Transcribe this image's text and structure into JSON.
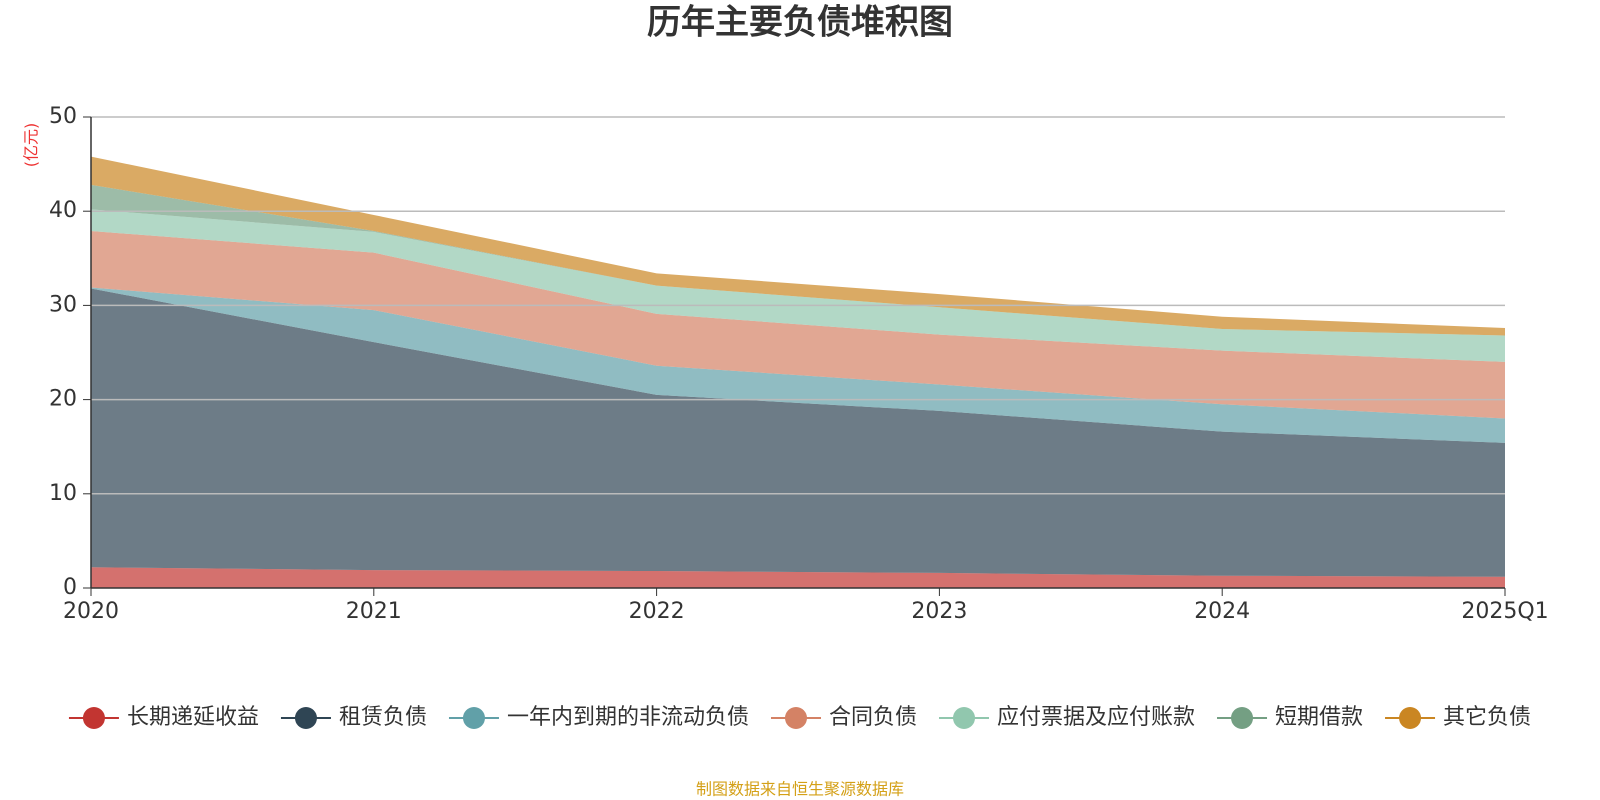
{
  "chart_data": {
    "type": "stacked-area",
    "title": "历年主要负债堆积图",
    "y_unit": "(亿元)",
    "categories": [
      "2020",
      "2021",
      "2022",
      "2023",
      "2024",
      "2025Q1"
    ],
    "series": [
      {
        "name": "长期递延收益",
        "color": "#c23531",
        "values": [
          2.2,
          1.9,
          1.8,
          1.6,
          1.3,
          1.2
        ]
      },
      {
        "name": "租赁负债",
        "color": "#2f4554",
        "values": [
          29.6,
          24.2,
          18.7,
          17.2,
          15.3,
          14.2
        ]
      },
      {
        "name": "一年内到期的非流动负债",
        "color": "#61a0a8",
        "values": [
          0.1,
          3.4,
          3.1,
          2.8,
          2.9,
          2.6
        ]
      },
      {
        "name": "合同负债",
        "color": "#d48265",
        "values": [
          6.0,
          6.1,
          5.5,
          5.3,
          5.7,
          6.0
        ]
      },
      {
        "name": "应付票据及应付账款",
        "color": "#91c7ae",
        "values": [
          2.3,
          2.2,
          3.0,
          2.9,
          2.3,
          2.8
        ]
      },
      {
        "name": "短期借款",
        "color": "#749f83",
        "values": [
          2.6,
          0.1,
          0,
          0,
          0,
          0
        ]
      },
      {
        "name": "其它负债",
        "color": "#ca8622",
        "values": [
          3.0,
          1.7,
          1.3,
          1.4,
          1.3,
          0.8
        ]
      }
    ],
    "ylim": [
      0,
      50
    ],
    "yticks": [
      0,
      10,
      20,
      30,
      40,
      50
    ],
    "grid": true,
    "source": "制图数据来自恒生聚源数据库"
  }
}
